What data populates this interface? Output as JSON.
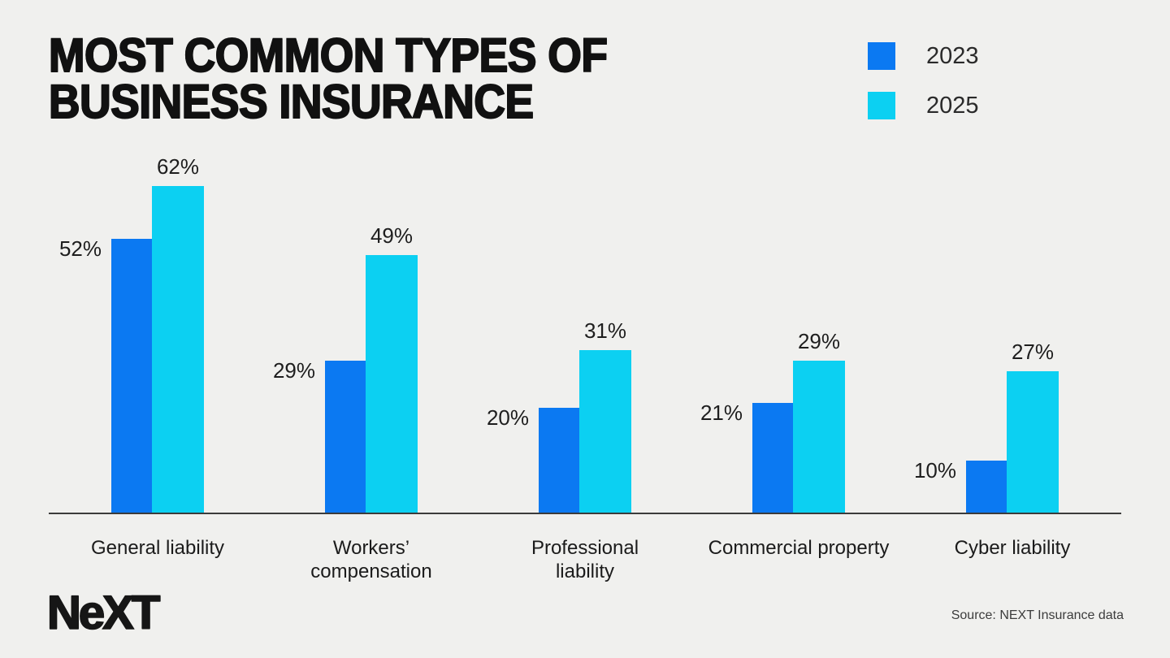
{
  "title": {
    "line1": "MOST COMMON TYPES OF",
    "line2": "BUSINESS INSURANCE"
  },
  "legend": {
    "items": [
      {
        "label": "2023",
        "color": "#0b79f2"
      },
      {
        "label": "2025",
        "color": "#0cd0f2"
      }
    ]
  },
  "chart_data": {
    "type": "bar",
    "title": "Most common types of business insurance",
    "categories": [
      "General liability",
      "Workers’ compensation",
      "Professional liability",
      "Commercial property",
      "Cyber liability"
    ],
    "category_display": [
      [
        "General liability"
      ],
      [
        "Workers’",
        "compensation"
      ],
      [
        "Professional",
        "liability"
      ],
      [
        "Commercial property"
      ],
      [
        "Cyber liability"
      ]
    ],
    "series": [
      {
        "name": "2023",
        "color": "#0b79f2",
        "values": [
          52,
          29,
          20,
          21,
          10
        ]
      },
      {
        "name": "2025",
        "color": "#0cd0f2",
        "values": [
          62,
          49,
          31,
          29,
          27
        ]
      }
    ],
    "unit": "%",
    "value_labels": true,
    "ylim": [
      0,
      70
    ],
    "grid": false,
    "legend_position": "top-right"
  },
  "footer": {
    "logo_text": "NeXT",
    "source": "Source: NEXT Insurance data"
  },
  "colors": {
    "background": "#f0f0ee",
    "text": "#1b1b1b",
    "axis": "#3b3b3b"
  }
}
